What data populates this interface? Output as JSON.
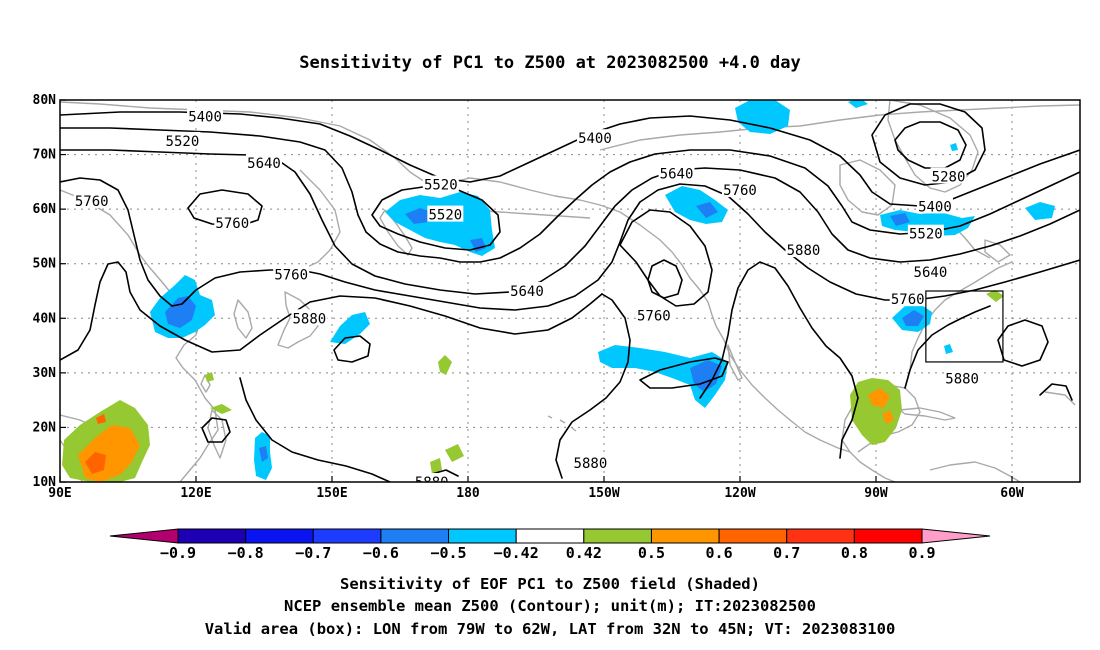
{
  "title": "Sensitivity of PC1 to Z500 at 2023082500 +4.0 day",
  "map": {
    "lon_labels": [
      "90E",
      "120E",
      "150E",
      "180",
      "150W",
      "120W",
      "90W",
      "60W"
    ],
    "lat_labels": [
      "80N",
      "70N",
      "60N",
      "50N",
      "40N",
      "30N",
      "20N",
      "10N"
    ],
    "contour_labels": [
      {
        "text": "5400",
        "lon": 122,
        "lat": 77
      },
      {
        "text": "5520",
        "lon": 117,
        "lat": 72.5
      },
      {
        "text": "5640",
        "lon": 135,
        "lat": 68.5
      },
      {
        "text": "5760",
        "lon": 97,
        "lat": 61.5
      },
      {
        "text": "5760",
        "lon": 128,
        "lat": 57.5
      },
      {
        "text": "5520",
        "lon": 174,
        "lat": 64.5
      },
      {
        "text": "5520",
        "lon": 175,
        "lat": 59
      },
      {
        "text": "5400",
        "lon": 208,
        "lat": 73
      },
      {
        "text": "5640",
        "lon": 226,
        "lat": 66.5
      },
      {
        "text": "5760",
        "lon": 240,
        "lat": 63.5
      },
      {
        "text": "5280",
        "lon": 286,
        "lat": 66
      },
      {
        "text": "5400",
        "lon": 283,
        "lat": 60.5
      },
      {
        "text": "5520",
        "lon": 281,
        "lat": 55.5
      },
      {
        "text": "5640",
        "lon": 282,
        "lat": 48.5
      },
      {
        "text": "5760",
        "lon": 141,
        "lat": 48
      },
      {
        "text": "5640",
        "lon": 193,
        "lat": 45
      },
      {
        "text": "5760",
        "lon": 221,
        "lat": 40.5
      },
      {
        "text": "5880",
        "lon": 254,
        "lat": 52.5
      },
      {
        "text": "5880",
        "lon": 145,
        "lat": 40
      },
      {
        "text": "5760",
        "lon": 277,
        "lat": 43.5
      },
      {
        "text": "5880",
        "lon": 289,
        "lat": 29
      },
      {
        "text": "5880",
        "lon": 207,
        "lat": 13.5
      },
      {
        "text": "5880",
        "lon": 172,
        "lat": 10
      }
    ],
    "valid_box": {
      "lon_min": -79,
      "lon_max": -62,
      "lat_min": 32,
      "lat_max": 45
    },
    "colors": {
      "contour": "#000000",
      "coast": "#a9a9a9",
      "grid": "#888888",
      "box": "#000000"
    }
  },
  "colorbar": {
    "labels": [
      "-0.9",
      "-0.8",
      "-0.7",
      "-0.6",
      "-0.5",
      "-0.42",
      "0.42",
      "0.5",
      "0.6",
      "0.7",
      "0.8",
      "0.9"
    ],
    "colors": [
      "#b4006e",
      "#1e00b4",
      "#0a14f0",
      "#1e3cff",
      "#1e7ff5",
      "#00c8ff",
      "#ffffff",
      "#96c832",
      "#ff9600",
      "#ff6400",
      "#ff3214",
      "#ff0000",
      "#ff9ec8"
    ]
  },
  "footer": {
    "line1": "Sensitivity of EOF PC1 to Z500 field (Shaded)",
    "line2": "NCEP ensemble mean Z500 (Contour); unit(m); IT:2023082500",
    "line3": "Valid area (box): LON from 79W to 62W, LAT from 32N to 45N; VT: 2023083100"
  }
}
